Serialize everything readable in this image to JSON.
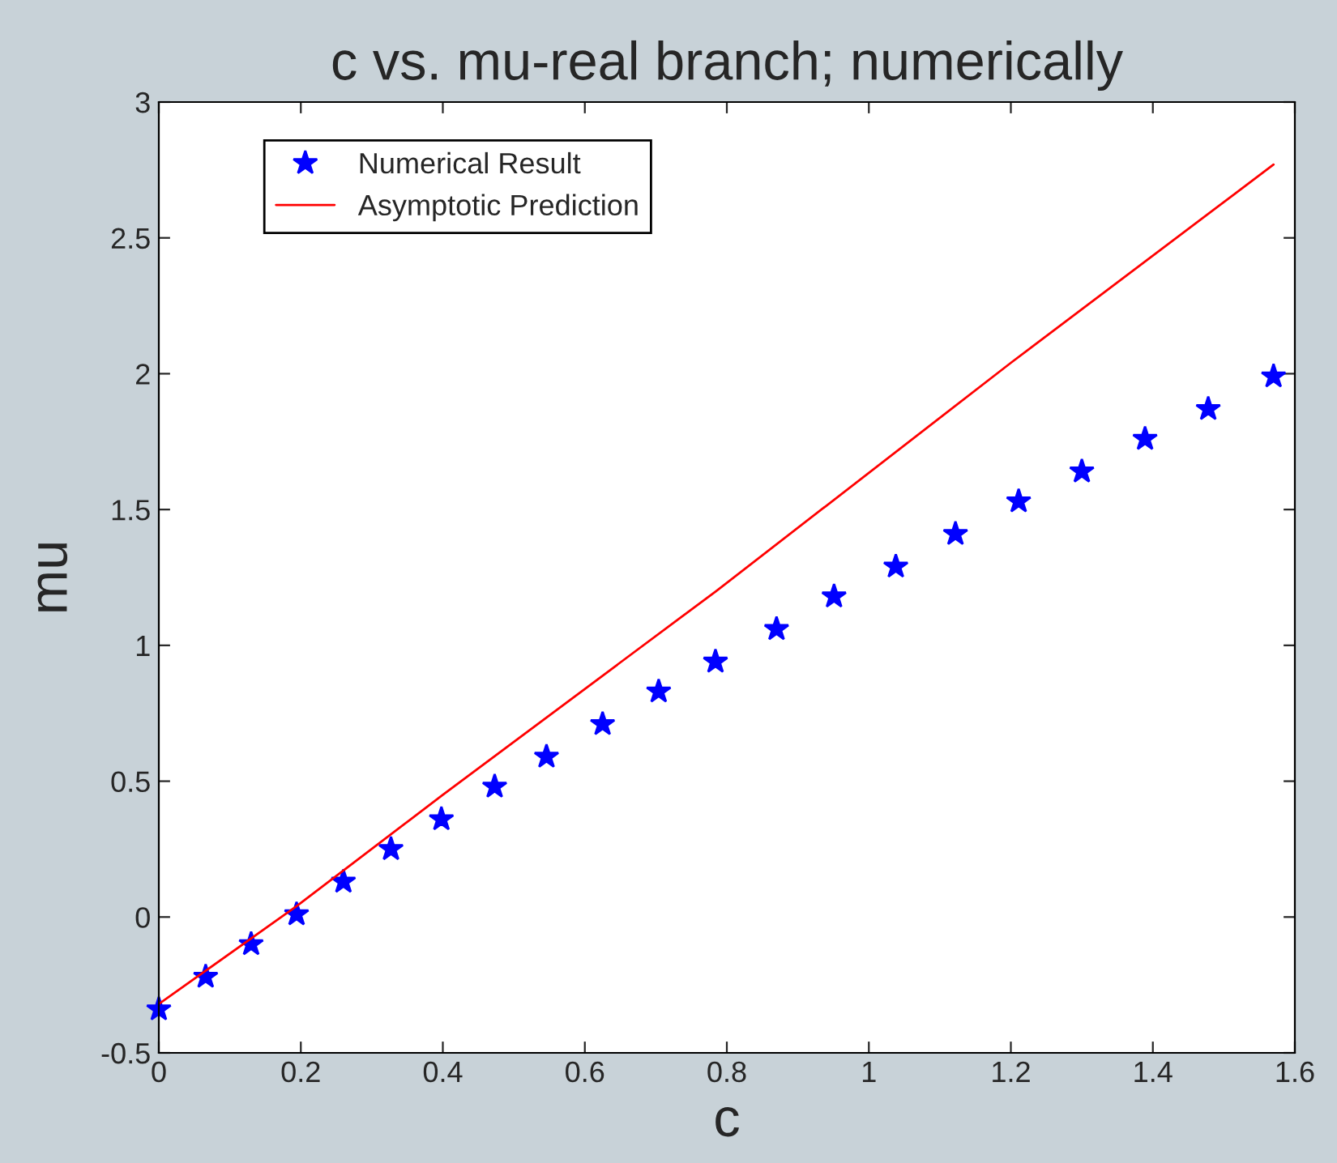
{
  "chart_data": {
    "type": "scatter",
    "title": "c vs. mu-real branch; numerically",
    "xlabel": "c",
    "ylabel": "mu",
    "series": [
      {
        "name": "Numerical Result",
        "color": "#0000ff",
        "marker": "star",
        "x": [
          0,
          0.066,
          0.13,
          0.194,
          0.26,
          0.327,
          0.398,
          0.473,
          0.546,
          0.625,
          0.704,
          0.784,
          0.87,
          0.951,
          1.038,
          1.122,
          1.211,
          1.3,
          1.389,
          1.478,
          1.57
        ],
        "values": [
          -0.34,
          -0.22,
          -0.1,
          0.01,
          0.13,
          0.25,
          0.36,
          0.48,
          0.59,
          0.71,
          0.83,
          0.94,
          1.06,
          1.18,
          1.29,
          1.41,
          1.53,
          1.64,
          1.76,
          1.87,
          1.99
        ]
      },
      {
        "name": "Asymptotic Prediction",
        "type": "line",
        "color": "#ff0000",
        "line_style": "solid",
        "x": [
          0,
          0.194,
          0.4,
          0.785,
          1.2,
          1.57
        ],
        "values": [
          -0.32,
          0.04,
          0.45,
          1.2,
          2.04,
          2.77
        ]
      }
    ],
    "xlim": [
      0,
      1.6
    ],
    "xticks": [
      0,
      0.2,
      0.4,
      0.6,
      0.8,
      1,
      1.2,
      1.4,
      1.6
    ],
    "ylim": [
      -0.5,
      3
    ],
    "yticks": [
      -0.5,
      0,
      0.5,
      1,
      1.5,
      2,
      2.5,
      3
    ],
    "grid": false,
    "legend": "top left"
  }
}
